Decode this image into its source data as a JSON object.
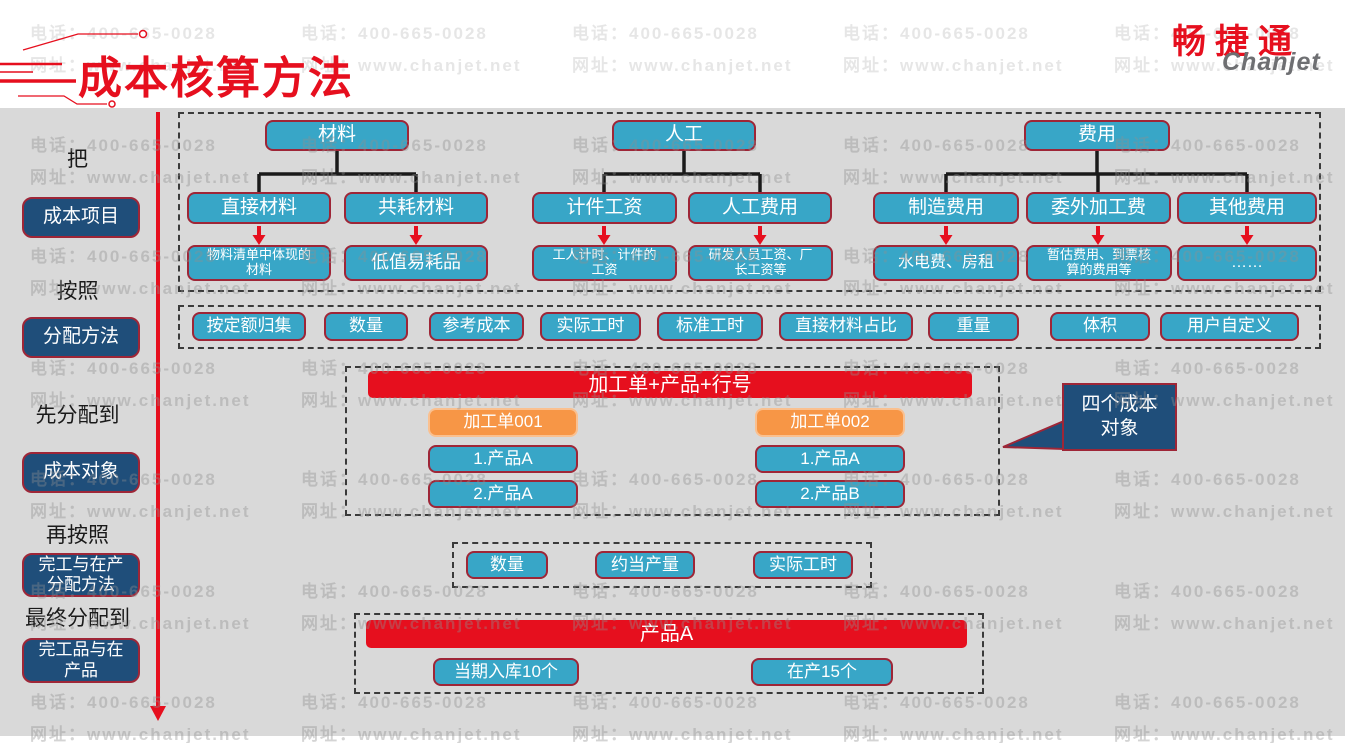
{
  "header": {
    "title": "成本核算方法",
    "logo_cn": "畅捷通",
    "logo_en": "Chanjet"
  },
  "watermark": {
    "line1": "电话：400-665-0028",
    "line2": "网址：www.chanjet.net"
  },
  "colors": {
    "accent_red": "#e60f1e",
    "teal_box": "#38a6c7",
    "dark_blue_box": "#1f4e7a",
    "box_border": "#9e2637",
    "orange_box": "#f79646",
    "background_gray": "#d9d9d9"
  },
  "sidebar": {
    "items": [
      {
        "kind": "label",
        "text": "把"
      },
      {
        "kind": "box",
        "text": "成本项目"
      },
      {
        "kind": "label",
        "text": "按照"
      },
      {
        "kind": "box",
        "text": "分配方法"
      },
      {
        "kind": "label",
        "text": "先分配到"
      },
      {
        "kind": "box",
        "text": "成本对象"
      },
      {
        "kind": "label",
        "text": "再按照"
      },
      {
        "kind": "box",
        "text": "完工与在产\n分配方法"
      },
      {
        "kind": "label",
        "text": "最终分配到"
      },
      {
        "kind": "box",
        "text": "完工品与在\n产品"
      }
    ]
  },
  "cost_items": {
    "trees": [
      {
        "root": "材料",
        "children": [
          "直接材料",
          "共耗材料"
        ],
        "leaves": [
          "物料清单中体现的\n材料",
          "低值易耗品"
        ]
      },
      {
        "root": "人工",
        "children": [
          "计件工资",
          "人工费用"
        ],
        "leaves": [
          "工人计时、计件的\n工资",
          "研发人员工资、厂\n长工资等"
        ]
      },
      {
        "root": "费用",
        "children": [
          "制造费用",
          "委外加工费",
          "其他费用"
        ],
        "leaves": [
          "水电费、房租",
          "暂估费用、到票核\n算的费用等",
          "……"
        ]
      }
    ]
  },
  "allocation_methods": [
    "按定额归集",
    "数量",
    "参考成本",
    "实际工时",
    "标准工时",
    "直接材料占比",
    "重量",
    "体积",
    "用户自定义"
  ],
  "cost_objects": {
    "header": "加工单+产品+行号",
    "callout": "四个成本\n对象",
    "groups": [
      {
        "order": "加工单001",
        "products": [
          "1.产品A",
          "2.产品A"
        ]
      },
      {
        "order": "加工单002",
        "products": [
          "1.产品A",
          "2.产品B"
        ]
      }
    ]
  },
  "wip_methods": [
    "数量",
    "约当产量",
    "实际工时"
  ],
  "final_allocation": {
    "header": "产品A",
    "items": [
      "当期入库10个",
      "在产15个"
    ]
  }
}
